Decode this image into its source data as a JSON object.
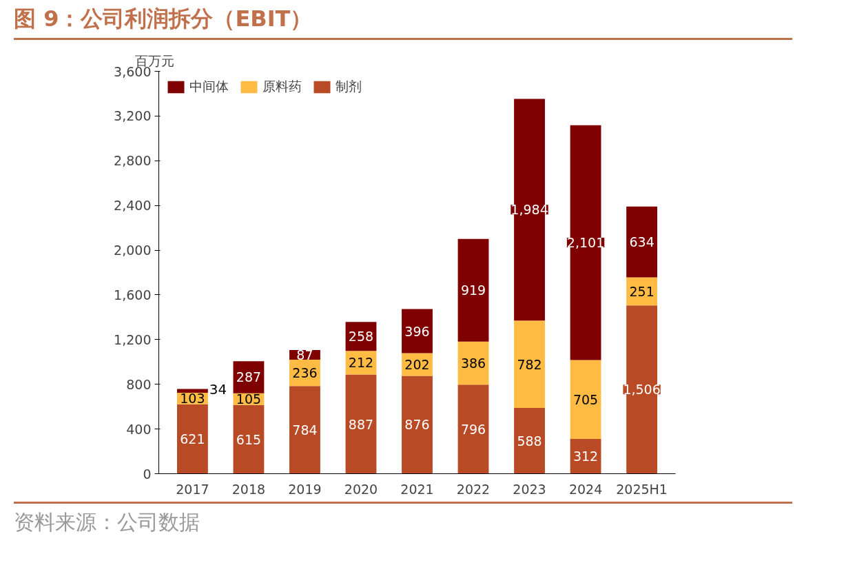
{
  "chart_data": {
    "type": "bar",
    "stacked": true,
    "title": "图 9：公司利润拆分（EBIT）",
    "ylabel": "百万元",
    "categories": [
      "2017",
      "2018",
      "2019",
      "2020",
      "2021",
      "2022",
      "2023",
      "2024",
      "2025H1"
    ],
    "series": [
      {
        "name": "制剂",
        "color": "#b84a25",
        "values": [
          621,
          615,
          784,
          887,
          876,
          796,
          588,
          312,
          1506
        ],
        "value_labels": [
          "621",
          "615",
          "784",
          "887",
          "876",
          "796",
          "588",
          "312",
          "1,506"
        ]
      },
      {
        "name": "原料药",
        "color": "#ffbb44",
        "values": [
          103,
          105,
          236,
          212,
          202,
          386,
          782,
          705,
          251
        ],
        "value_labels": [
          "103",
          "105",
          "236",
          "212",
          "202",
          "386",
          "782",
          "705",
          "251"
        ]
      },
      {
        "name": "中间体",
        "color": "#7f0000",
        "values": [
          34,
          287,
          87,
          258,
          396,
          919,
          1984,
          2101,
          634
        ],
        "value_labels": [
          "34",
          "287",
          "87",
          "258",
          "396",
          "919",
          "1,984",
          "2,101",
          "634"
        ]
      }
    ],
    "ylim": [
      0,
      3600
    ],
    "yticks": [
      {
        "value": 0,
        "label": "0"
      },
      {
        "value": 400,
        "label": "400"
      },
      {
        "value": 800,
        "label": "800"
      },
      {
        "value": 1200,
        "label": "1,200"
      },
      {
        "value": 1600,
        "label": "1,600"
      },
      {
        "value": 2000,
        "label": "2,000"
      },
      {
        "value": 2400,
        "label": "2,400"
      },
      {
        "value": 2800,
        "label": "2,800"
      },
      {
        "value": 3200,
        "label": "3,200"
      },
      {
        "value": 3600,
        "label": "3,600"
      }
    ],
    "grid": false,
    "legend": "top left",
    "annotations": [
      "资料来源：公司数据"
    ]
  }
}
